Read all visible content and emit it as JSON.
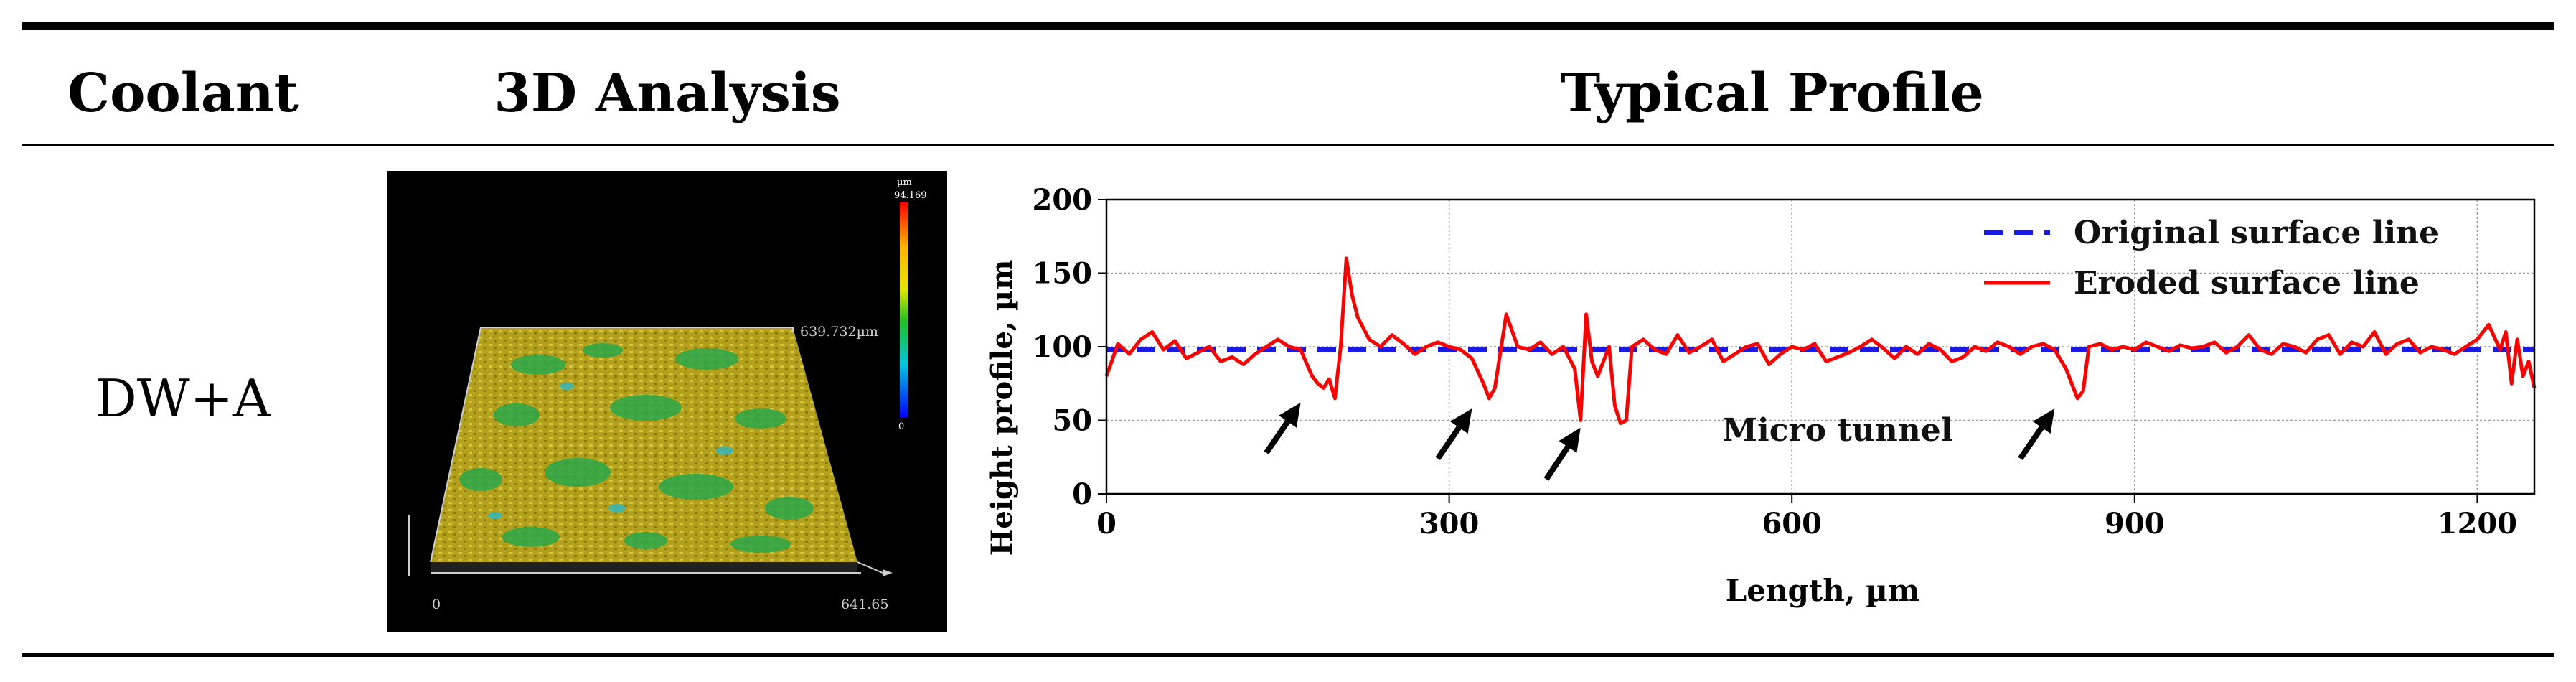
{
  "table": {
    "headers": [
      "Coolant",
      "3D Analysis",
      "Typical Profile"
    ],
    "coolant": "DW+A"
  },
  "analysis3d": {
    "colorbar_unit": "µm",
    "colorbar_max": "94.169",
    "colorbar_min": "0",
    "y_extent": "639.732µm",
    "x_start": "0",
    "x_end": "641.65",
    "colors": {
      "background": "#000000",
      "surface_a": "#b7a21a",
      "surface_b": "#2aa84a"
    }
  },
  "chart_data": {
    "type": "line",
    "title": "",
    "xlabel": "Length, µm",
    "ylabel": "Height profile, µm",
    "xlim": [
      0,
      1250
    ],
    "ylim": [
      0,
      200
    ],
    "x_ticks": [
      0,
      300,
      600,
      900,
      1200
    ],
    "y_ticks": [
      0,
      50,
      100,
      150,
      200
    ],
    "grid": true,
    "legend_position": "top-right",
    "series": [
      {
        "name": "Original surface line",
        "style": "dashed",
        "color": "#1a1ae6",
        "x": [
          0,
          1250
        ],
        "y": [
          98,
          98
        ]
      },
      {
        "name": "Eroded surface line",
        "style": "solid",
        "color": "#ff0000",
        "x": [
          0,
          10,
          20,
          30,
          40,
          50,
          60,
          70,
          80,
          90,
          100,
          110,
          120,
          130,
          140,
          150,
          160,
          170,
          180,
          185,
          190,
          195,
          200,
          205,
          210,
          215,
          220,
          230,
          240,
          250,
          260,
          270,
          280,
          290,
          300,
          310,
          320,
          330,
          335,
          340,
          350,
          360,
          370,
          380,
          390,
          400,
          410,
          415,
          420,
          425,
          430,
          440,
          445,
          450,
          455,
          460,
          470,
          480,
          490,
          500,
          510,
          520,
          530,
          540,
          550,
          560,
          570,
          580,
          590,
          600,
          610,
          620,
          630,
          640,
          650,
          660,
          670,
          680,
          690,
          700,
          710,
          720,
          730,
          740,
          750,
          760,
          770,
          780,
          790,
          800,
          810,
          820,
          830,
          840,
          845,
          850,
          855,
          860,
          870,
          880,
          890,
          900,
          910,
          920,
          930,
          940,
          950,
          960,
          970,
          980,
          990,
          1000,
          1010,
          1020,
          1030,
          1040,
          1050,
          1060,
          1070,
          1080,
          1090,
          1100,
          1110,
          1120,
          1130,
          1140,
          1150,
          1160,
          1170,
          1180,
          1190,
          1200,
          1210,
          1220,
          1225,
          1230,
          1235,
          1240,
          1245,
          1250
        ],
        "y": [
          80,
          102,
          95,
          105,
          110,
          98,
          104,
          92,
          96,
          100,
          90,
          93,
          88,
          95,
          100,
          105,
          100,
          98,
          80,
          75,
          72,
          78,
          65,
          100,
          160,
          135,
          120,
          105,
          100,
          108,
          102,
          95,
          100,
          103,
          100,
          98,
          92,
          75,
          65,
          72,
          122,
          100,
          98,
          103,
          95,
          100,
          85,
          50,
          122,
          90,
          80,
          100,
          60,
          48,
          50,
          100,
          105,
          98,
          95,
          108,
          96,
          100,
          105,
          90,
          95,
          100,
          102,
          88,
          95,
          100,
          98,
          102,
          90,
          93,
          96,
          100,
          105,
          99,
          92,
          100,
          95,
          102,
          98,
          90,
          93,
          100,
          97,
          103,
          100,
          95,
          100,
          102,
          98,
          85,
          75,
          65,
          70,
          100,
          102,
          98,
          100,
          98,
          103,
          100,
          97,
          101,
          99,
          100,
          103,
          96,
          100,
          108,
          98,
          95,
          102,
          100,
          96,
          105,
          108,
          95,
          103,
          100,
          110,
          95,
          102,
          105,
          96,
          100,
          98,
          95,
          100,
          105,
          115,
          98,
          110,
          75,
          105,
          80,
          90,
          72
        ]
      }
    ],
    "annotations": [
      {
        "text": "Micro tunnel",
        "x": 640,
        "y": 36
      }
    ],
    "arrows": [
      {
        "from": [
          140,
          28
        ],
        "to": [
          170,
          62
        ]
      },
      {
        "from": [
          290,
          24
        ],
        "to": [
          320,
          58
        ]
      },
      {
        "from": [
          385,
          10
        ],
        "to": [
          415,
          45
        ]
      },
      {
        "from": [
          800,
          24
        ],
        "to": [
          830,
          58
        ]
      }
    ]
  }
}
